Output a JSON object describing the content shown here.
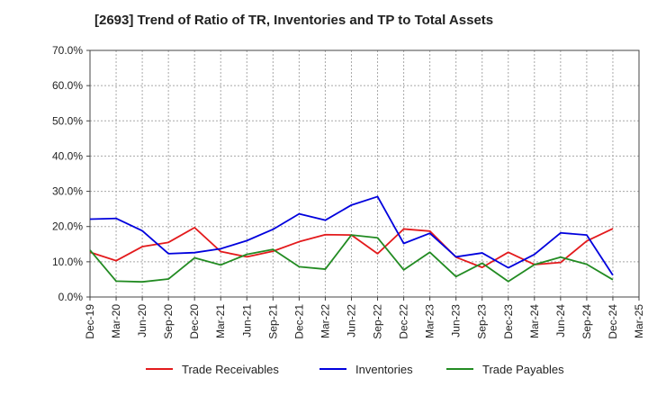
{
  "chart_data": {
    "type": "line",
    "title": "[2693]  Trend of Ratio of TR, Inventories and TP to Total Assets",
    "x": [
      "Dec-19",
      "Mar-20",
      "Jun-20",
      "Sep-20",
      "Dec-20",
      "Mar-21",
      "Jun-21",
      "Sep-21",
      "Dec-21",
      "Mar-22",
      "Jun-22",
      "Sep-22",
      "Dec-22",
      "Mar-23",
      "Jun-23",
      "Sep-23",
      "Dec-23",
      "Mar-24",
      "Jun-24",
      "Sep-24",
      "Dec-24"
    ],
    "x_ticks": [
      "Dec-19",
      "Mar-20",
      "Jun-20",
      "Sep-20",
      "Dec-20",
      "Mar-21",
      "Jun-21",
      "Sep-21",
      "Dec-21",
      "Mar-22",
      "Jun-22",
      "Sep-22",
      "Dec-22",
      "Mar-23",
      "Jun-23",
      "Sep-23",
      "Dec-23",
      "Mar-24",
      "Jun-24",
      "Sep-24",
      "Dec-24",
      "Mar-25"
    ],
    "y_ticks": [
      "0.0%",
      "10.0%",
      "20.0%",
      "30.0%",
      "40.0%",
      "50.0%",
      "60.0%",
      "70.0%"
    ],
    "ylim": [
      0,
      70
    ],
    "grid": true,
    "legend_position": "bottom",
    "series": [
      {
        "name": "Trade Receivables",
        "color": "#e31a1c",
        "values": [
          12.7,
          10.3,
          14.3,
          15.5,
          19.7,
          12.9,
          11.4,
          13.0,
          15.7,
          17.7,
          17.6,
          12.3,
          19.3,
          18.7,
          11.3,
          8.4,
          12.7,
          9.2,
          9.8,
          15.9,
          19.4
        ]
      },
      {
        "name": "Inventories",
        "color": "#0000dd",
        "values": [
          22.1,
          22.3,
          18.8,
          12.3,
          12.6,
          13.7,
          16.0,
          19.2,
          23.6,
          21.8,
          26.1,
          28.5,
          15.2,
          18.1,
          11.4,
          12.5,
          8.3,
          12.1,
          18.2,
          17.6,
          6.2
        ]
      },
      {
        "name": "Trade Payables",
        "color": "#228b22",
        "values": [
          13.3,
          4.5,
          4.3,
          5.1,
          11.1,
          9.1,
          12.1,
          13.5,
          8.6,
          7.9,
          17.6,
          16.8,
          7.7,
          12.7,
          5.8,
          9.6,
          4.4,
          9.2,
          11.3,
          9.3,
          4.9
        ]
      }
    ]
  }
}
